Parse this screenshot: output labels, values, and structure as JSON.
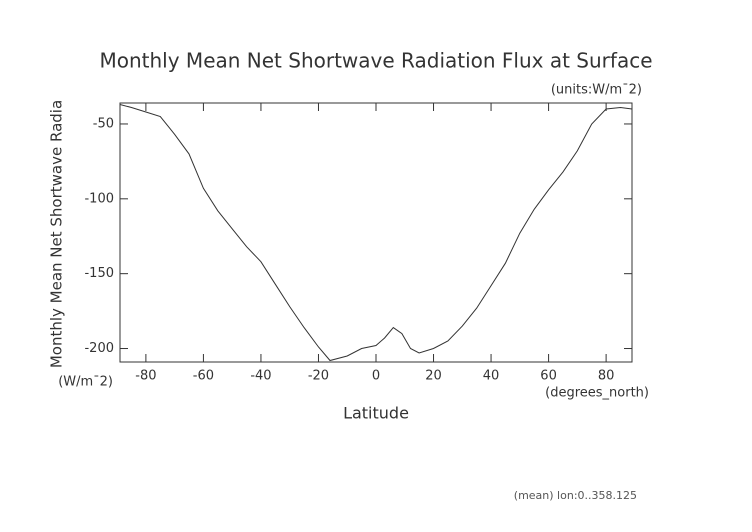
{
  "chart_data": {
    "type": "line",
    "title": "Monthly Mean Net Shortwave Radiation Flux at Surface",
    "subtitle": "(units:W/m¯2)",
    "y_label": "Monthly Mean Net Shortwave Radia",
    "y_units": "(W/m¯2)",
    "x_label": "Latitude",
    "x_units": "(degrees_north)",
    "annotation": "(mean) lon:0..358.125",
    "x": [
      -89,
      -85,
      -80,
      -75,
      -70,
      -65,
      -60,
      -55,
      -50,
      -45,
      -40,
      -35,
      -30,
      -25,
      -20,
      -16,
      -10,
      -5,
      0,
      3,
      6,
      9,
      12,
      15,
      20,
      25,
      30,
      35,
      40,
      45,
      50,
      55,
      60,
      65,
      70,
      75,
      80,
      85,
      89
    ],
    "series": [
      {
        "name": "Monthly Mean Net Shortwave Radiation",
        "color": "#333333",
        "values": [
          -37,
          -39,
          -42,
          -45,
          -57,
          -70,
          -93,
          -108,
          -120,
          -132,
          -142,
          -157,
          -172,
          -186,
          -199,
          -208,
          -205,
          -200,
          -198,
          -193,
          -186,
          -190,
          -200,
          -203,
          -200,
          -195,
          -185,
          -173,
          -158,
          -143,
          -123,
          -107,
          -94,
          -82,
          -68,
          -50,
          -40,
          -39,
          -40
        ]
      }
    ],
    "xlim": [
      -89,
      89
    ],
    "ylim": [
      -209,
      -36
    ],
    "xticks": [
      -80,
      -60,
      -40,
      -20,
      0,
      20,
      40,
      60,
      80
    ],
    "yticks": [
      -200,
      -150,
      -100,
      -50
    ]
  }
}
